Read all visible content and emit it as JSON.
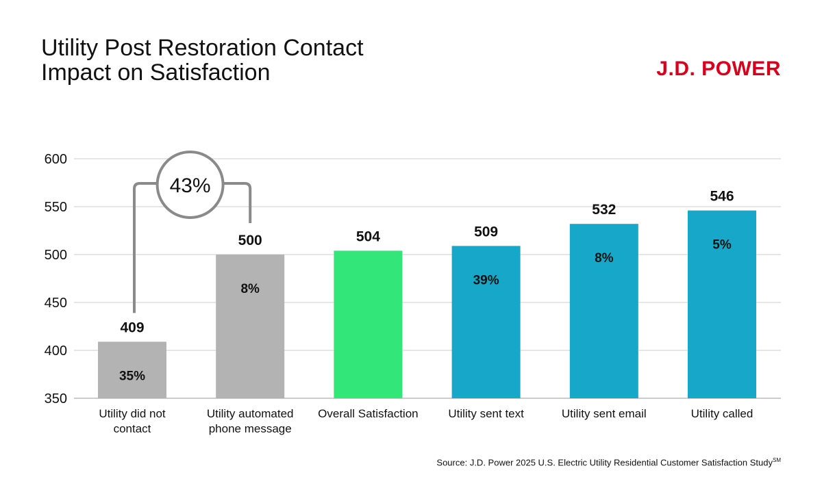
{
  "colors": {
    "gray": "#b3b3b3",
    "green": "#33e67a",
    "blue": "#17a7c9",
    "brand_red": "#d6001c",
    "grid": "#cccccc",
    "callout": "#8a8a8a"
  },
  "header": {
    "title_line1": "Utility Post Restoration Contact",
    "title_line2": "Impact on Satisfaction",
    "logo_text": "J.D. POWER"
  },
  "footer": {
    "source": "Source: J.D. Power 2025 U.S. Electric Utility Residential Customer Satisfaction Study",
    "source_mark": "SM"
  },
  "chart_data": {
    "type": "bar",
    "title": "Utility Post Restoration Contact Impact on Satisfaction",
    "ylim": [
      350,
      600
    ],
    "yticks": [
      350,
      400,
      450,
      500,
      550,
      600
    ],
    "grid": true,
    "categories": [
      [
        "Utility did not",
        "contact"
      ],
      [
        "Utility automated",
        "phone message"
      ],
      [
        "Overall Satisfaction"
      ],
      [
        "Utility sent text"
      ],
      [
        "Utility sent email"
      ],
      [
        "Utility called"
      ]
    ],
    "values": [
      409,
      500,
      504,
      509,
      532,
      546
    ],
    "value_labels": [
      "409",
      "500",
      "504",
      "509",
      "532",
      "546"
    ],
    "percent_labels": [
      "35%",
      "8%",
      "",
      "39%",
      "8%",
      "5%"
    ],
    "bar_colors": [
      "gray",
      "gray",
      "green",
      "blue",
      "blue",
      "blue"
    ],
    "annotation": {
      "text": "43%",
      "from_index": 0,
      "to_index": 1
    }
  }
}
